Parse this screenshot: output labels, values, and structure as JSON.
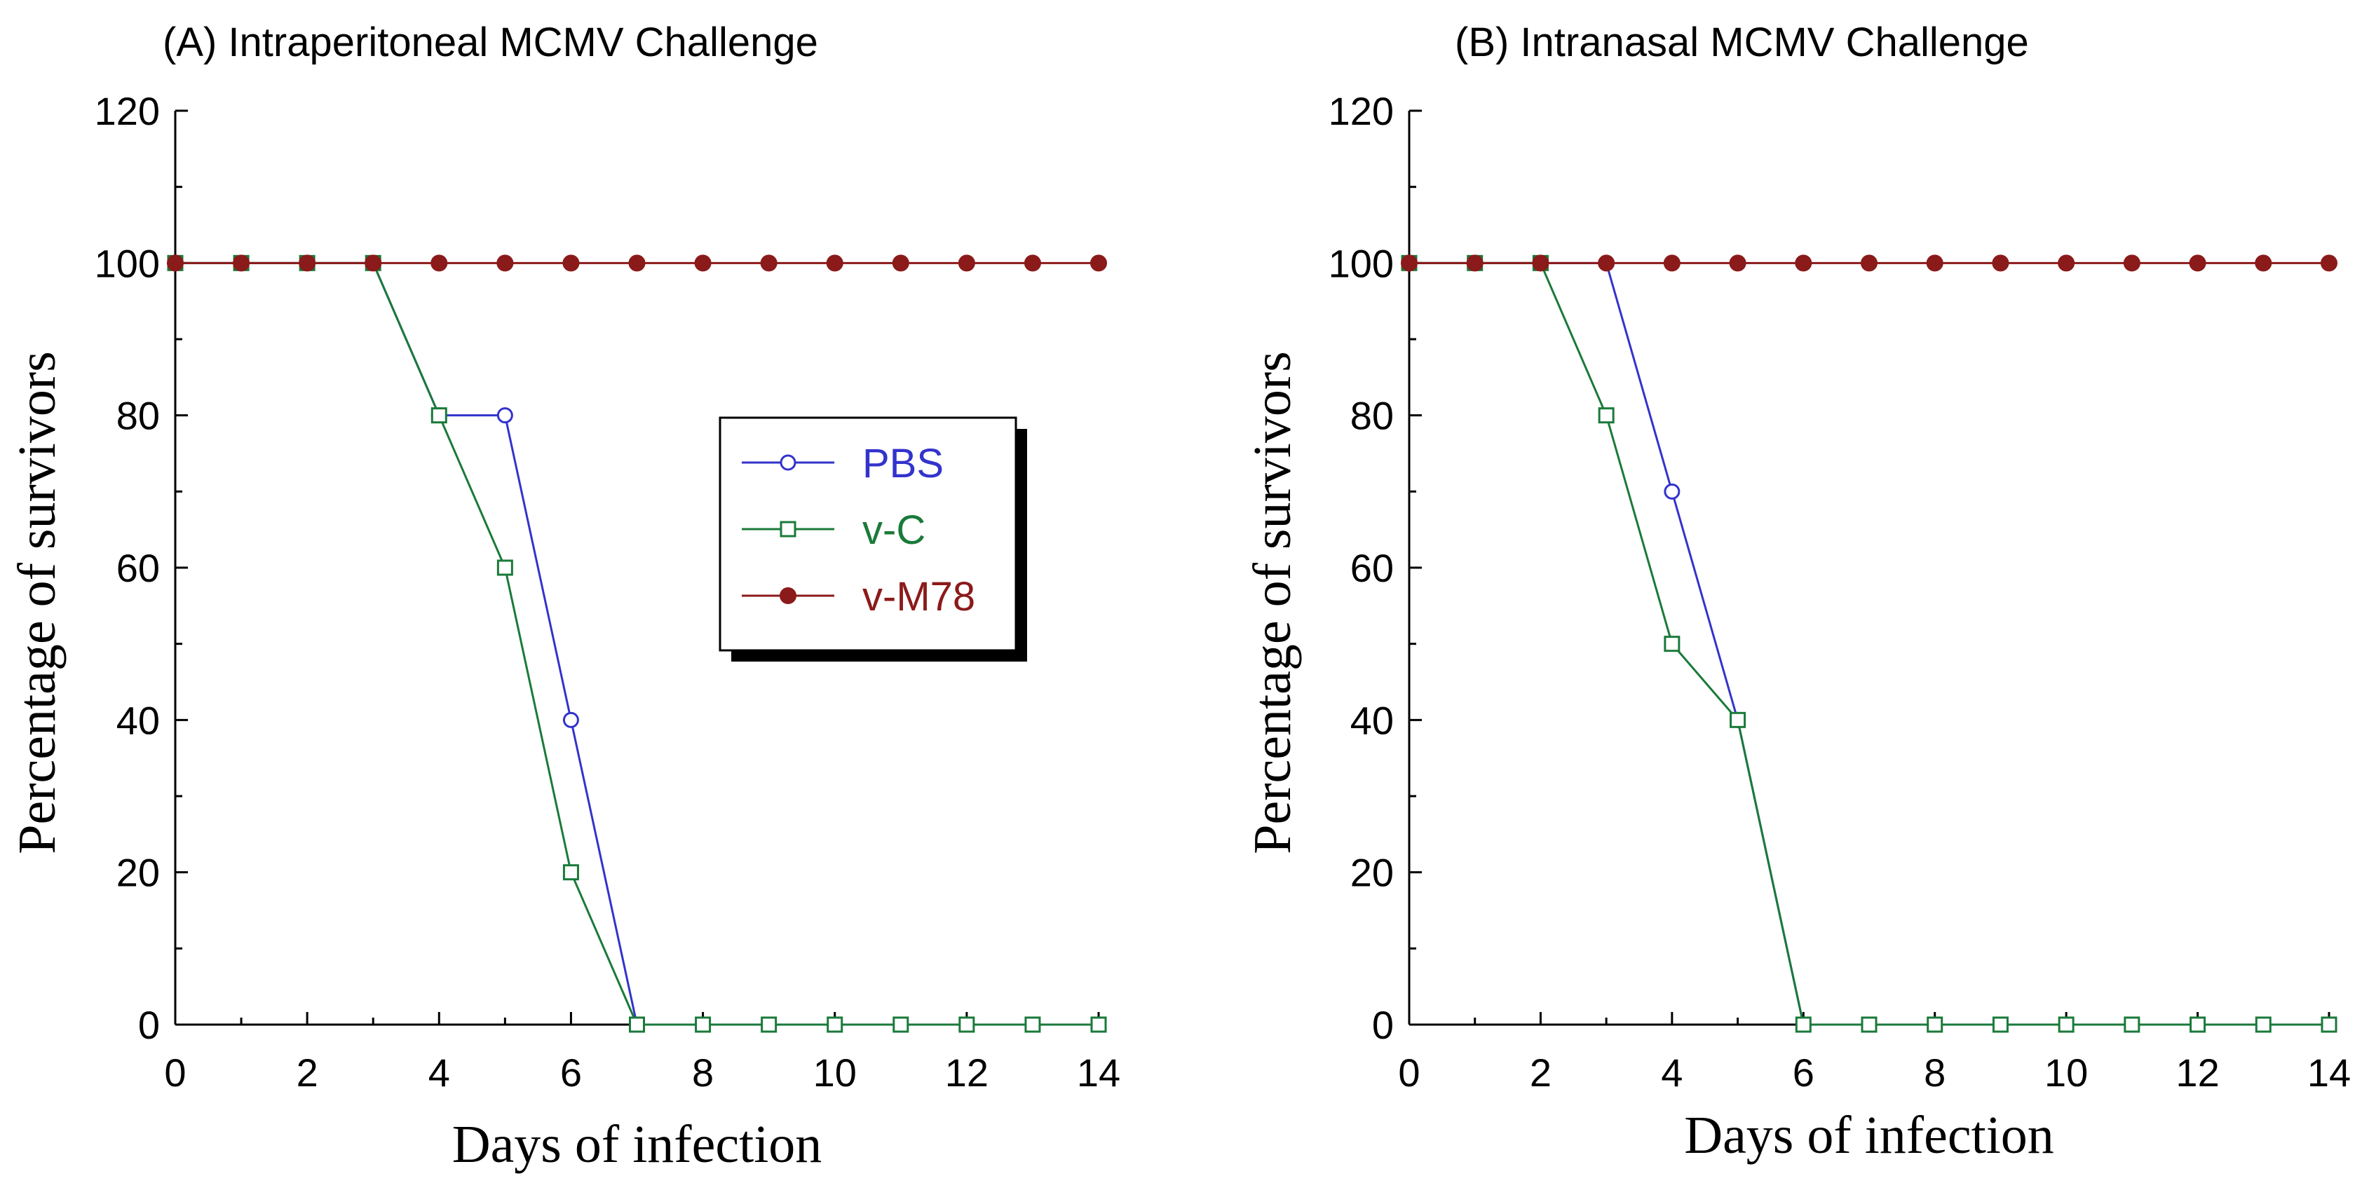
{
  "chart_data": [
    {
      "type": "line",
      "title": "(A) Intraperitoneal MCMV Challenge",
      "xlabel": "Days of infection",
      "ylabel": "Percentage of survivors",
      "xlim": [
        0,
        14
      ],
      "ylim": [
        0,
        120
      ],
      "xticks": [
        0,
        2,
        4,
        6,
        8,
        10,
        12,
        14
      ],
      "yticks": [
        0,
        20,
        40,
        60,
        80,
        100,
        120
      ],
      "x": [
        0,
        1,
        2,
        3,
        4,
        5,
        6,
        7,
        8,
        9,
        10,
        11,
        12,
        13,
        14
      ],
      "legend_position": "center",
      "series": [
        {
          "name": "PBS",
          "marker": "open-circle",
          "color": "#3333cc",
          "values": [
            100,
            100,
            100,
            100,
            80,
            80,
            40,
            0,
            0,
            0,
            0,
            0,
            0,
            0,
            0
          ]
        },
        {
          "name": "v-C",
          "marker": "open-square",
          "color": "#1a7a3a",
          "values": [
            100,
            100,
            100,
            100,
            80,
            60,
            20,
            0,
            0,
            0,
            0,
            0,
            0,
            0,
            0
          ]
        },
        {
          "name": "v-M78",
          "marker": "filled-circle",
          "color": "#8b1a1a",
          "values": [
            100,
            100,
            100,
            100,
            100,
            100,
            100,
            100,
            100,
            100,
            100,
            100,
            100,
            100,
            100
          ]
        }
      ]
    },
    {
      "type": "line",
      "title": "(B) Intranasal MCMV Challenge",
      "xlabel": "Days of infection",
      "ylabel": "Percentage of survivors",
      "xlim": [
        0,
        14
      ],
      "ylim": [
        0,
        120
      ],
      "xticks": [
        0,
        2,
        4,
        6,
        8,
        10,
        12,
        14
      ],
      "yticks": [
        0,
        20,
        40,
        60,
        80,
        100,
        120
      ],
      "x": [
        0,
        1,
        2,
        3,
        4,
        5,
        6,
        7,
        8,
        9,
        10,
        11,
        12,
        13,
        14
      ],
      "series": [
        {
          "name": "PBS",
          "marker": "open-circle",
          "color": "#3333cc",
          "values": [
            100,
            100,
            100,
            100,
            70,
            40,
            0,
            0,
            0,
            0,
            0,
            0,
            0,
            0,
            0
          ]
        },
        {
          "name": "v-C",
          "marker": "open-square",
          "color": "#1a7a3a",
          "values": [
            100,
            100,
            100,
            80,
            50,
            40,
            0,
            0,
            0,
            0,
            0,
            0,
            0,
            0,
            0
          ]
        },
        {
          "name": "v-M78",
          "marker": "filled-circle",
          "color": "#8b1a1a",
          "values": [
            100,
            100,
            100,
            100,
            100,
            100,
            100,
            100,
            100,
            100,
            100,
            100,
            100,
            100,
            100
          ]
        }
      ]
    }
  ]
}
